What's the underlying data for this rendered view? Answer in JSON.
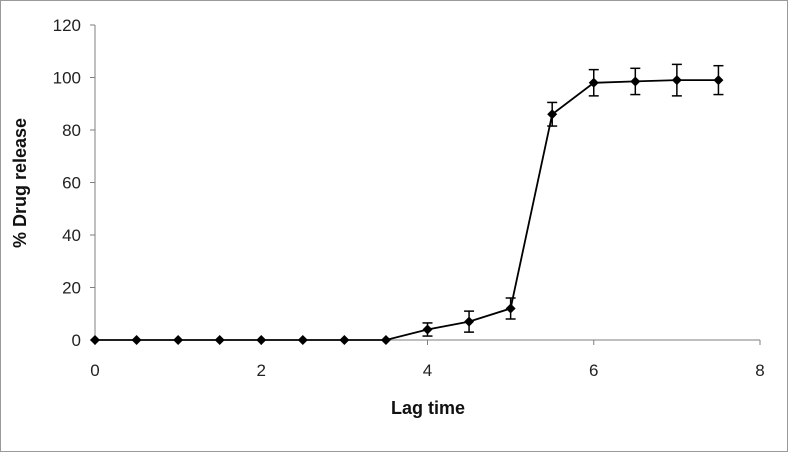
{
  "chart_data": {
    "type": "line",
    "title": "",
    "xlabel": "Lag time",
    "ylabel": "% Drug release",
    "xlim": [
      0,
      8
    ],
    "ylim": [
      0,
      120
    ],
    "x_ticks": [
      "0",
      "2",
      "4",
      "6",
      "8"
    ],
    "y_ticks": [
      "0",
      "20",
      "40",
      "60",
      "80",
      "100",
      "120"
    ],
    "grid": false,
    "legend": "none",
    "series": [
      {
        "color": "#000000",
        "marker": "diamond",
        "x": [
          0,
          0.5,
          1,
          1.5,
          2,
          2.5,
          3,
          3.5,
          4,
          4.5,
          5,
          5.5,
          6,
          6.5,
          7,
          7.5
        ],
        "y": [
          0,
          0,
          0,
          0,
          0,
          0,
          0,
          0,
          4,
          7,
          12,
          86,
          98,
          98.5,
          99,
          99
        ],
        "error": [
          0,
          0,
          0,
          0,
          0,
          0,
          0,
          0,
          2.5,
          4,
          4,
          4.5,
          5,
          5,
          6,
          5.5
        ]
      }
    ]
  }
}
